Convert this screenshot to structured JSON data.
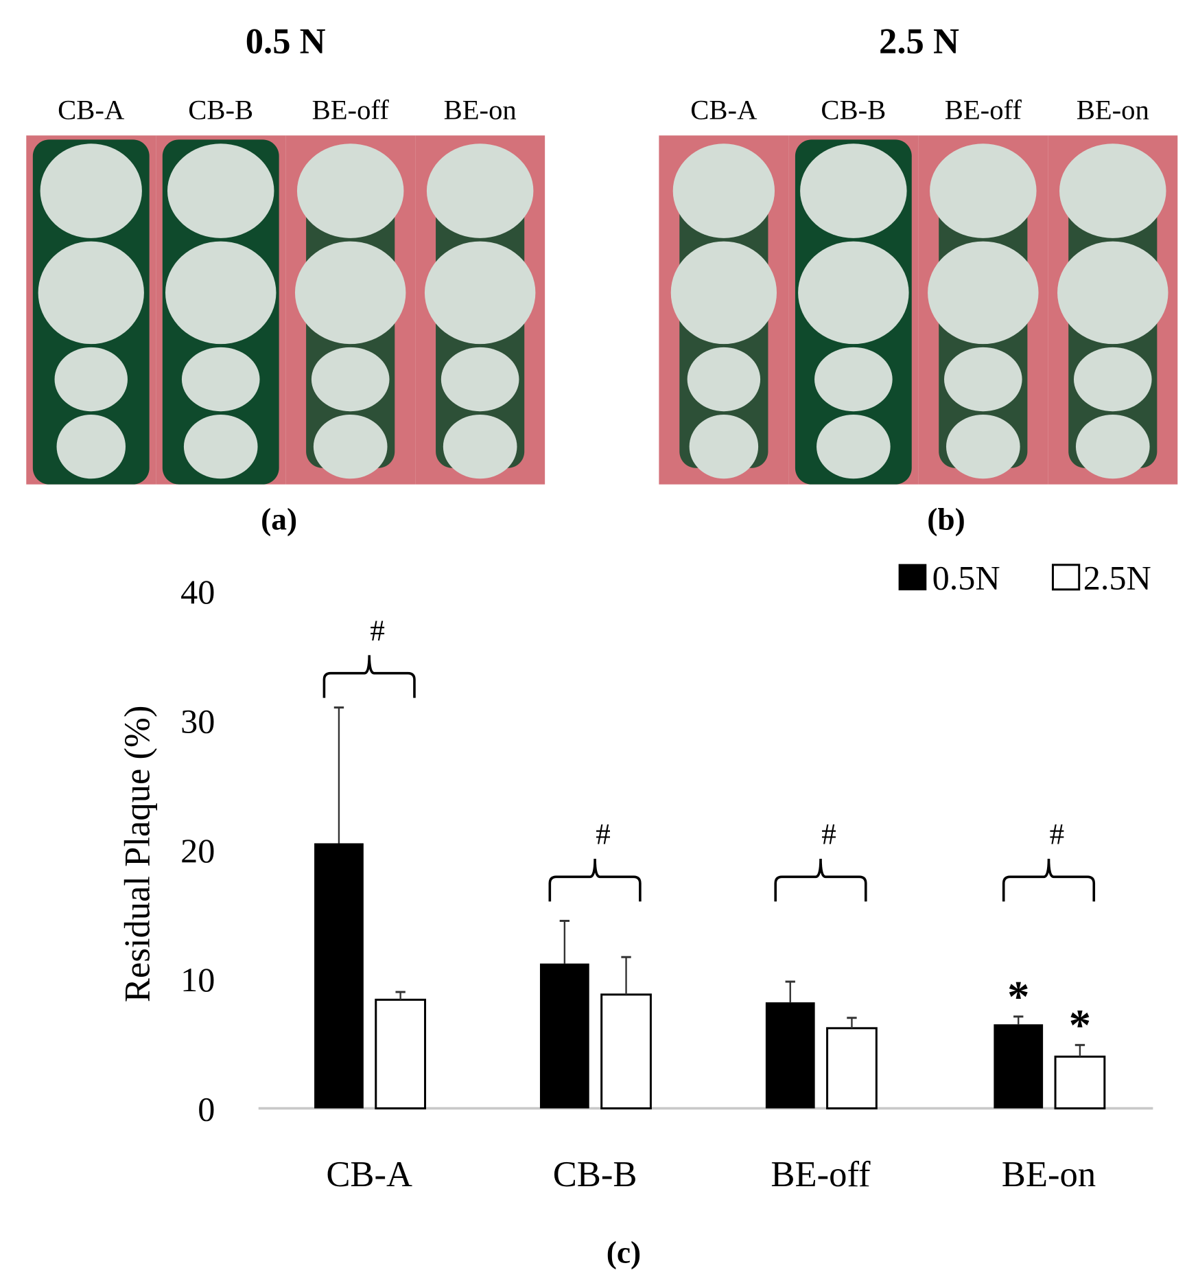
{
  "panels": [
    {
      "title": "0.5 N",
      "caption": "(a)",
      "columns": [
        "CB-A",
        "CB-B",
        "BE-off",
        "BE-on"
      ]
    },
    {
      "title": "2.5 N",
      "caption": "(b)",
      "columns": [
        "CB-A",
        "CB-B",
        "BE-off",
        "BE-on"
      ]
    }
  ],
  "photo_colors": {
    "gingiva": "#d4727a",
    "plaque": "#0f4a2c",
    "tooth": "#d3ddd6"
  },
  "chart_data": {
    "type": "bar",
    "caption": "(c)",
    "ylabel": "Residual Plaque (%)",
    "xlabel": "",
    "ylim": [
      0,
      40
    ],
    "yticks": [
      0,
      10,
      20,
      30,
      40
    ],
    "categories": [
      "CB-A",
      "CB-B",
      "BE-off",
      "BE-on"
    ],
    "legend_position": "top-right",
    "grid": false,
    "series": [
      {
        "name": "0.5N",
        "color": "#000000",
        "values": [
          20.5,
          11.2,
          8.2,
          6.5
        ],
        "error": [
          10.5,
          3.3,
          1.6,
          0.6
        ]
      },
      {
        "name": "2.5N",
        "color": "#ffffff",
        "values": [
          8.4,
          8.8,
          6.2,
          4.0
        ],
        "error": [
          0.6,
          2.9,
          0.8,
          0.9
        ]
      }
    ],
    "significance_between_forces": [
      "#",
      "#",
      "#",
      "#"
    ],
    "significance_markers": [
      {
        "category": "BE-on",
        "series": "0.5N",
        "label": "*"
      },
      {
        "category": "BE-on",
        "series": "2.5N",
        "label": "*"
      }
    ]
  }
}
